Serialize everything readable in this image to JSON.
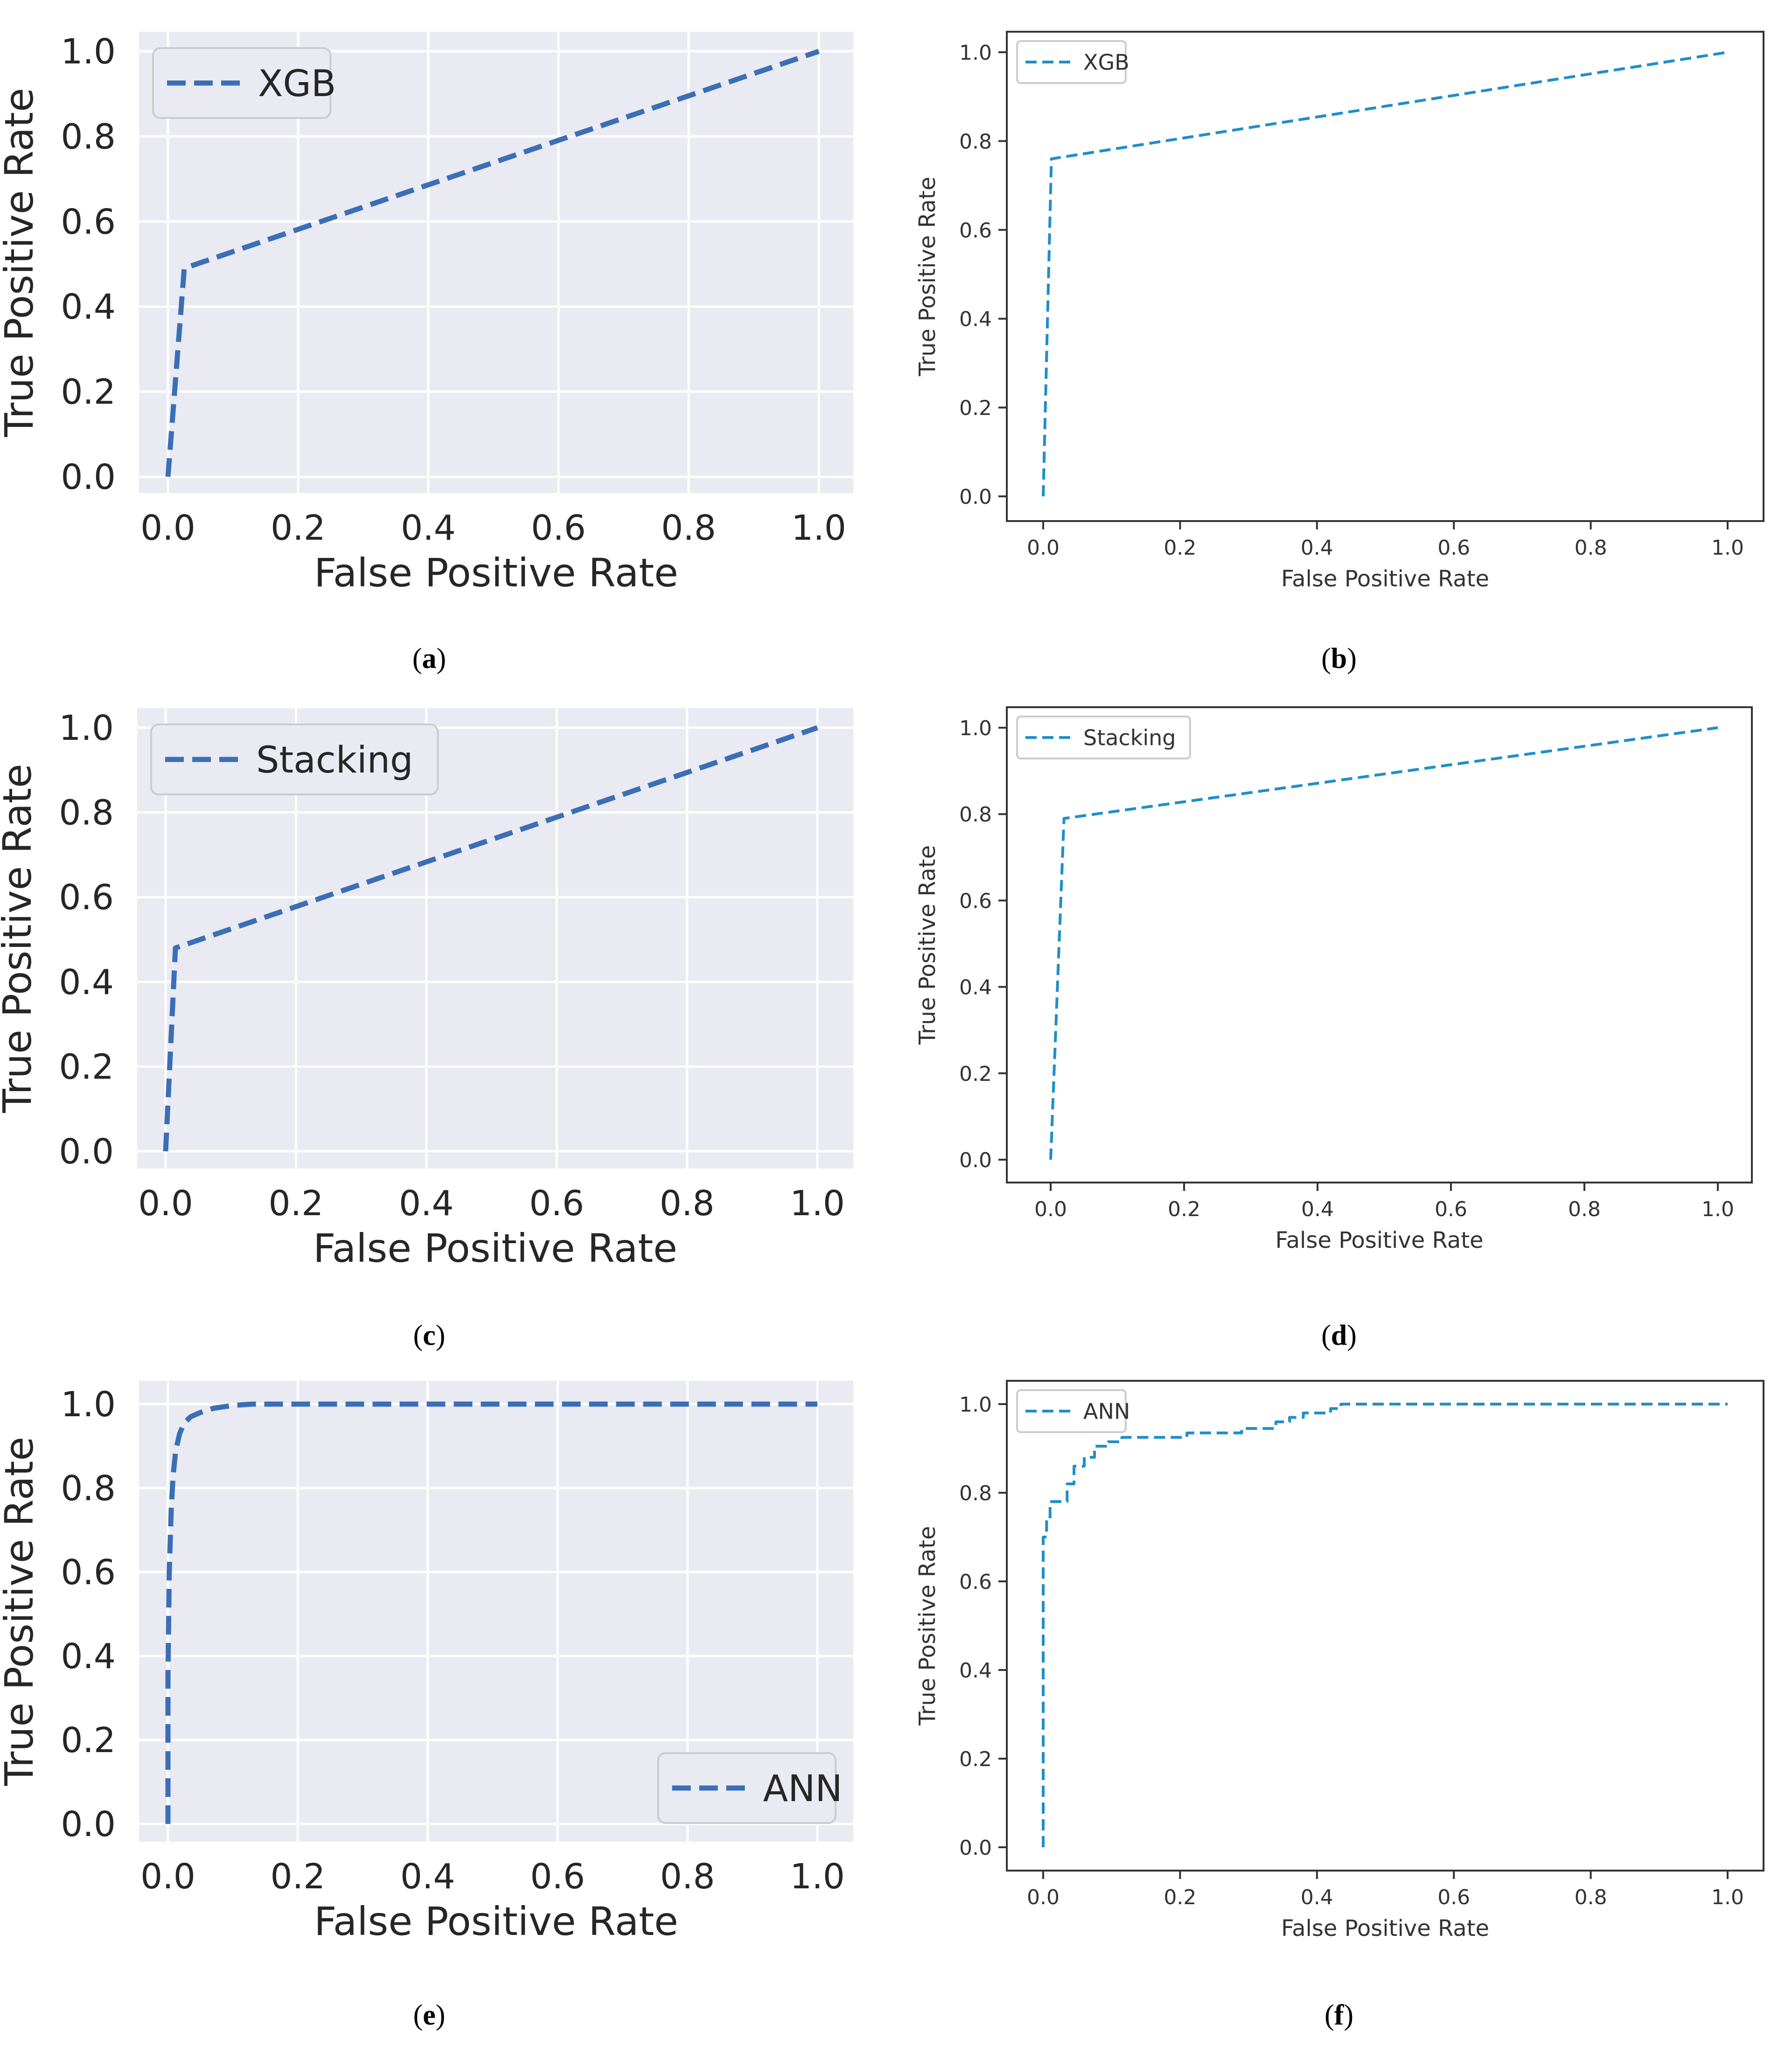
{
  "colors": {
    "seaborn_line": "#3a6fb7",
    "plain_line": "#1f8fc7",
    "seaborn_bg": "#eaeaf2",
    "grid": "#ffffff"
  },
  "chart_data": [
    {
      "id": "a",
      "caption": "a",
      "style": "seaborn",
      "type": "line",
      "xlabel": "False Positive Rate",
      "ylabel": "True Positive Rate",
      "xlim": [
        0,
        1
      ],
      "ylim": [
        0,
        1
      ],
      "xticks": [
        "0.0",
        "0.2",
        "0.4",
        "0.6",
        "0.8",
        "1.0"
      ],
      "yticks": [
        "0.0",
        "0.2",
        "0.4",
        "0.6",
        "0.8",
        "1.0"
      ],
      "legend_position": "upper-left",
      "series": [
        {
          "name": "XGB",
          "x": [
            0.0,
            0.025,
            1.0
          ],
          "y": [
            0.0,
            0.49,
            1.0
          ]
        }
      ]
    },
    {
      "id": "b",
      "caption": "b",
      "style": "plain",
      "type": "line",
      "xlabel": "False Positive Rate",
      "ylabel": "True Positive Rate",
      "xlim": [
        0,
        1
      ],
      "ylim": [
        0,
        1
      ],
      "xticks": [
        "0.0",
        "0.2",
        "0.4",
        "0.6",
        "0.8",
        "1.0"
      ],
      "yticks": [
        "0.0",
        "0.2",
        "0.4",
        "0.6",
        "0.8",
        "1.0"
      ],
      "legend_position": "upper-left",
      "series": [
        {
          "name": "XGB",
          "x": [
            0.0,
            0.012,
            1.0
          ],
          "y": [
            0.0,
            0.76,
            1.0
          ]
        }
      ]
    },
    {
      "id": "c",
      "caption": "c",
      "style": "seaborn",
      "type": "line",
      "xlabel": "False Positive Rate",
      "ylabel": "True Positive Rate",
      "xlim": [
        0,
        1
      ],
      "ylim": [
        0,
        1
      ],
      "xticks": [
        "0.0",
        "0.2",
        "0.4",
        "0.6",
        "0.8",
        "1.0"
      ],
      "yticks": [
        "0.0",
        "0.2",
        "0.4",
        "0.6",
        "0.8",
        "1.0"
      ],
      "legend_position": "upper-left",
      "series": [
        {
          "name": "Stacking",
          "x": [
            0.0,
            0.015,
            1.0
          ],
          "y": [
            0.0,
            0.48,
            1.0
          ]
        }
      ]
    },
    {
      "id": "d",
      "caption": "d",
      "style": "plain",
      "type": "line",
      "xlabel": "False Positive Rate",
      "ylabel": "True Positive Rate",
      "xlim": [
        0,
        1
      ],
      "ylim": [
        0,
        1
      ],
      "xticks": [
        "0.0",
        "0.2",
        "0.4",
        "0.6",
        "0.8",
        "1.0"
      ],
      "yticks": [
        "0.0",
        "0.2",
        "0.4",
        "0.6",
        "0.8",
        "1.0"
      ],
      "legend_position": "upper-left",
      "series": [
        {
          "name": "Stacking",
          "x": [
            0.0,
            0.02,
            1.0
          ],
          "y": [
            0.0,
            0.79,
            1.0
          ]
        }
      ]
    },
    {
      "id": "e",
      "caption": "e",
      "style": "seaborn",
      "type": "line",
      "xlabel": "False Positive Rate",
      "ylabel": "True Positive Rate",
      "xlim": [
        0,
        1
      ],
      "ylim": [
        0,
        1
      ],
      "xticks": [
        "0.0",
        "0.2",
        "0.4",
        "0.6",
        "0.8",
        "1.0"
      ],
      "yticks": [
        "0.0",
        "0.2",
        "0.4",
        "0.6",
        "0.8",
        "1.0"
      ],
      "legend_position": "lower-right",
      "series": [
        {
          "name": "ANN",
          "x": [
            0.0,
            0.0,
            0.002,
            0.005,
            0.008,
            0.012,
            0.018,
            0.025,
            0.035,
            0.05,
            0.07,
            0.1,
            0.13,
            0.2,
            1.0
          ],
          "y": [
            0.0,
            0.35,
            0.6,
            0.75,
            0.83,
            0.89,
            0.93,
            0.955,
            0.97,
            0.98,
            0.99,
            0.997,
            1.0,
            1.0,
            1.0
          ]
        }
      ]
    },
    {
      "id": "f",
      "caption": "f",
      "style": "plain",
      "type": "line",
      "xlabel": "False Positive Rate",
      "ylabel": "True Positive Rate",
      "xlim": [
        0,
        1
      ],
      "ylim": [
        0,
        1
      ],
      "xticks": [
        "0.0",
        "0.2",
        "0.4",
        "0.6",
        "0.8",
        "1.0"
      ],
      "yticks": [
        "0.0",
        "0.2",
        "0.4",
        "0.6",
        "0.8",
        "1.0"
      ],
      "legend_position": "upper-left",
      "series": [
        {
          "name": "ANN",
          "x": [
            0.0,
            0.0,
            0.005,
            0.005,
            0.01,
            0.01,
            0.035,
            0.035,
            0.045,
            0.045,
            0.06,
            0.06,
            0.075,
            0.075,
            0.095,
            0.095,
            0.115,
            0.115,
            0.21,
            0.21,
            0.29,
            0.29,
            0.34,
            0.34,
            0.36,
            0.36,
            0.38,
            0.38,
            0.42,
            0.42,
            0.435,
            0.435,
            1.0
          ],
          "y": [
            0.0,
            0.7,
            0.7,
            0.74,
            0.74,
            0.78,
            0.78,
            0.82,
            0.82,
            0.86,
            0.86,
            0.88,
            0.88,
            0.905,
            0.905,
            0.915,
            0.915,
            0.925,
            0.925,
            0.935,
            0.935,
            0.945,
            0.945,
            0.96,
            0.96,
            0.97,
            0.97,
            0.98,
            0.98,
            0.99,
            0.99,
            1.0,
            1.0
          ]
        }
      ]
    }
  ]
}
